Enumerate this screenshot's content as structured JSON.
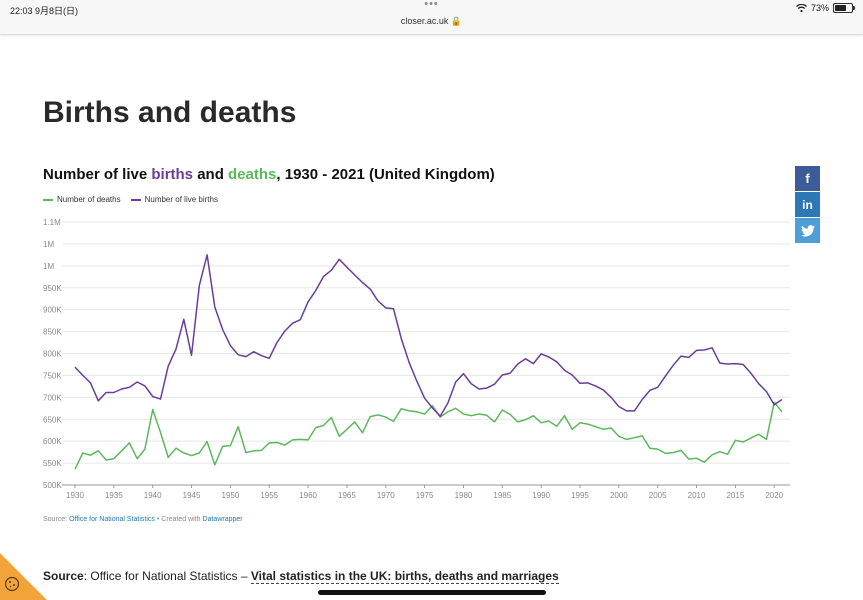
{
  "status_bar": {
    "time": "22:03  9月8日(日)",
    "dots": "•••",
    "url": "closer.ac.uk 🔒",
    "battery": "73%"
  },
  "page": {
    "title": "Births and deaths",
    "chart_title_prefix": "Number of live ",
    "chart_title_births": "births",
    "chart_title_and": " and ",
    "chart_title_deaths": "deaths",
    "chart_title_suffix": ", 1930 - 2021 (United Kingdom)",
    "source_label": "Source: ",
    "source_link": "Office for National Statistics",
    "created_with": " • Created with ",
    "datawrapper": "Datawrapper",
    "footer_source_label": "Source",
    "footer_source_text": ": Office for National Statistics – ",
    "footer_link": "Vital statistics in the UK: births, deaths and marriages"
  },
  "share": {
    "facebook": "f",
    "linkedin": "in"
  },
  "colors": {
    "births": "#6a3d9a",
    "deaths": "#5cb85c",
    "grid": "#e6e6e6",
    "axis_text": "#888888"
  },
  "chart_data": {
    "type": "line",
    "title": "Number of live births and deaths, 1930 - 2021 (United Kingdom)",
    "xlabel": "",
    "ylabel": "",
    "xlim": [
      1930,
      2021
    ],
    "ylim": [
      500000,
      1100000
    ],
    "y_ticks": [
      500000,
      550000,
      600000,
      650000,
      700000,
      750000,
      800000,
      850000,
      900000,
      950000,
      1000000,
      1050000,
      1100000
    ],
    "y_tick_labels": [
      "500K",
      "550K",
      "600K",
      "650K",
      "700K",
      "750K",
      "800K",
      "850K",
      "900K",
      "950K",
      "1M",
      "1M",
      "1.1M"
    ],
    "x_ticks": [
      1930,
      1935,
      1940,
      1945,
      1950,
      1955,
      1960,
      1965,
      1970,
      1975,
      1980,
      1985,
      1990,
      1995,
      2000,
      2005,
      2010,
      2015,
      2020
    ],
    "grid": true,
    "legend_position": "top-left",
    "x": [
      1930,
      1931,
      1932,
      1933,
      1934,
      1935,
      1936,
      1937,
      1938,
      1939,
      1940,
      1941,
      1942,
      1943,
      1944,
      1945,
      1946,
      1947,
      1948,
      1949,
      1950,
      1951,
      1952,
      1953,
      1954,
      1955,
      1956,
      1957,
      1958,
      1959,
      1960,
      1961,
      1962,
      1963,
      1964,
      1965,
      1966,
      1967,
      1968,
      1969,
      1970,
      1971,
      1972,
      1973,
      1974,
      1975,
      1976,
      1977,
      1978,
      1979,
      1980,
      1981,
      1982,
      1983,
      1984,
      1985,
      1986,
      1987,
      1988,
      1989,
      1990,
      1991,
      1992,
      1993,
      1994,
      1995,
      1996,
      1997,
      1998,
      1999,
      2000,
      2001,
      2002,
      2003,
      2004,
      2005,
      2006,
      2007,
      2008,
      2009,
      2010,
      2011,
      2012,
      2013,
      2014,
      2015,
      2016,
      2017,
      2018,
      2019,
      2020,
      2021
    ],
    "series": [
      {
        "name": "Number of deaths",
        "color": "#5cb85c",
        "values": [
          536000,
          573000,
          568000,
          578000,
          557000,
          560000,
          578000,
          596000,
          560000,
          582000,
          672000,
          620000,
          563000,
          584000,
          573000,
          567000,
          573000,
          599000,
          546000,
          588000,
          590000,
          633000,
          574000,
          578000,
          579000,
          596000,
          597000,
          591000,
          603000,
          604000,
          603000,
          631000,
          636000,
          654000,
          611000,
          627000,
          644000,
          619000,
          656000,
          660000,
          655000,
          645000,
          674000,
          669000,
          667000,
          662000,
          681000,
          655000,
          667000,
          675000,
          662000,
          658000,
          662000,
          659000,
          644000,
          671000,
          661000,
          644000,
          649000,
          658000,
          642000,
          646000,
          634000,
          658000,
          627000,
          642000,
          639000,
          633000,
          627000,
          630000,
          611000,
          604000,
          608000,
          612000,
          584000,
          582000,
          572000,
          574000,
          579000,
          559000,
          561000,
          552000,
          569000,
          576000,
          570000,
          602000,
          598000,
          607000,
          616000,
          604000,
          689000,
          667000
        ]
      },
      {
        "name": "Number of live births",
        "color": "#6a3d9a",
        "values": [
          769000,
          750000,
          733000,
          692000,
          711000,
          711000,
          719000,
          723000,
          735000,
          726000,
          702000,
          696000,
          771000,
          810000,
          878000,
          796000,
          955000,
          1025000,
          906000,
          855000,
          818000,
          797000,
          793000,
          804000,
          795000,
          789000,
          825000,
          851000,
          869000,
          877000,
          918000,
          944000,
          976000,
          990000,
          1015000,
          997000,
          979000,
          962000,
          947000,
          920000,
          904000,
          902000,
          834000,
          780000,
          737000,
          698000,
          676000,
          657000,
          687000,
          735000,
          754000,
          731000,
          719000,
          721000,
          730000,
          751000,
          755000,
          776000,
          788000,
          777000,
          799000,
          792000,
          781000,
          762000,
          751000,
          732000,
          733000,
          726000,
          717000,
          700000,
          679000,
          669000,
          669000,
          695000,
          716000,
          723000,
          749000,
          773000,
          794000,
          791000,
          807000,
          808000,
          813000,
          778000,
          776000,
          777000,
          775000,
          755000,
          731000,
          713000,
          683000,
          695000
        ]
      }
    ]
  }
}
